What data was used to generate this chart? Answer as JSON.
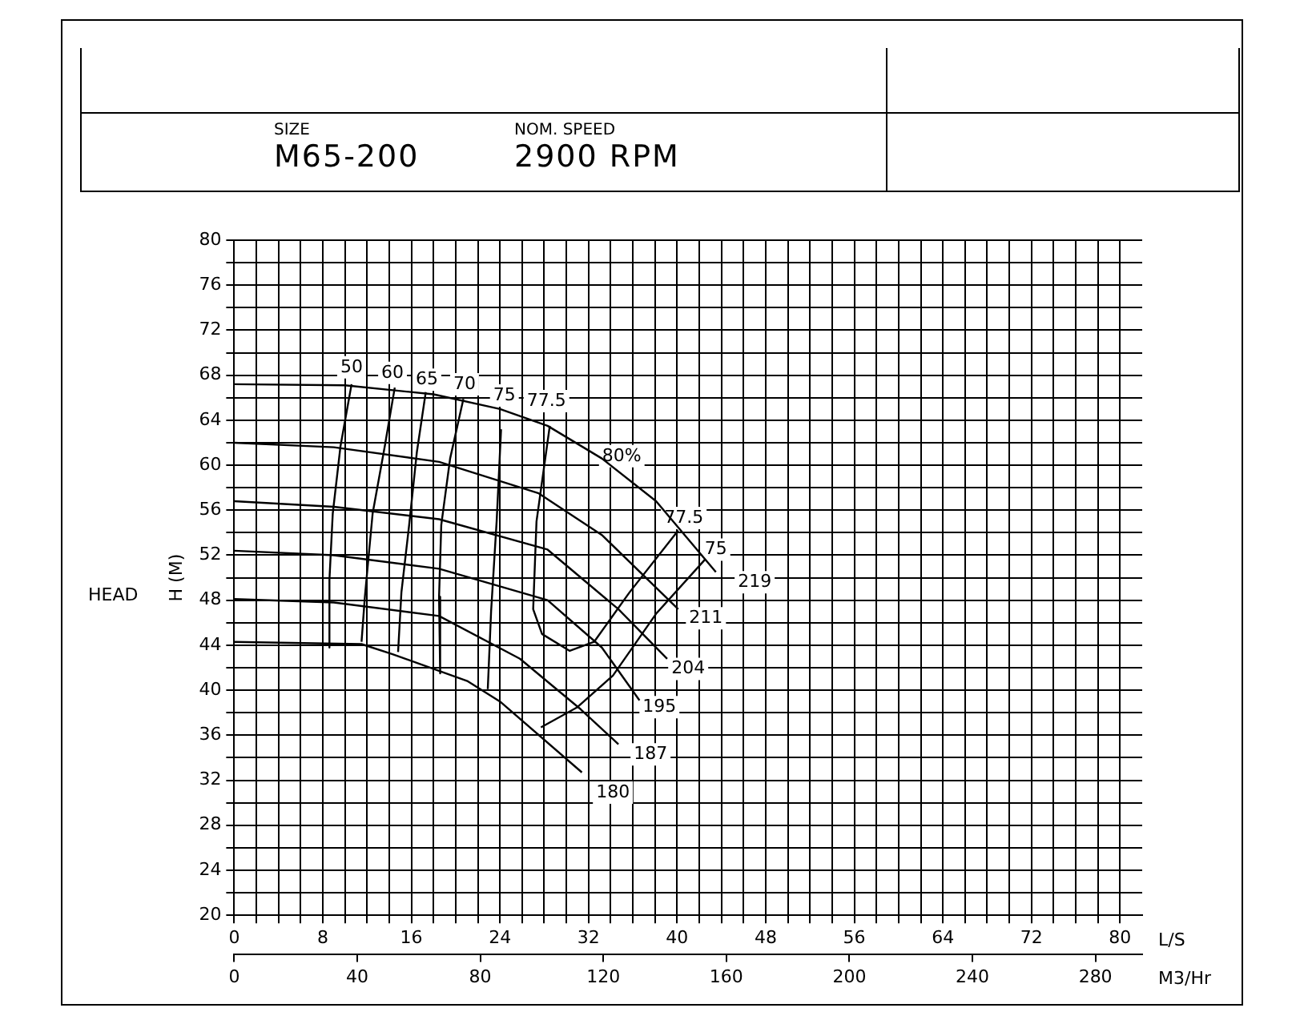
{
  "chart_data": {
    "type": "line",
    "ylabel": "H (M)",
    "xlabel": "L/S",
    "x2label": "M3/Hr",
    "annotations": [
      "SIZE",
      "M65-200",
      "NOM. SPEED",
      "2900 RPM",
      "HEAD",
      {
        "text": "50",
        "x": 10.6,
        "y": 68.7
      },
      {
        "text": "60",
        "x": 14.3,
        "y": 68.2
      },
      {
        "text": "65",
        "x": 17.4,
        "y": 67.6
      },
      {
        "text": "70",
        "x": 20.8,
        "y": 67.2
      },
      {
        "text": "75",
        "x": 24.4,
        "y": 66.2
      },
      {
        "text": "77.5",
        "x": 28.2,
        "y": 65.7
      },
      {
        "text": "80%",
        "x": 35,
        "y": 60.8
      },
      {
        "text": "77.5",
        "x": 40.6,
        "y": 55.3
      },
      {
        "text": "75",
        "x": 43.5,
        "y": 52.5
      },
      {
        "text": "219",
        "x": 47,
        "y": 49.6
      },
      {
        "text": "211",
        "x": 42.6,
        "y": 46.4
      },
      {
        "text": "204",
        "x": 41,
        "y": 41.9
      },
      {
        "text": "195",
        "x": 38.4,
        "y": 38.5
      },
      {
        "text": "187",
        "x": 37.6,
        "y": 34.3
      },
      {
        "text": "180",
        "x": 34.2,
        "y": 30.9
      }
    ],
    "series": [
      {
        "color": "#000000",
        "x": [
          0,
          10,
          18,
          24,
          28.3,
          33.2,
          38.1,
          43.5
        ],
        "values": [
          67.2,
          67.1,
          66.3,
          65,
          63.5,
          60.6,
          56.8,
          50.5
        ]
      },
      {
        "color": "#000000",
        "x": [
          0,
          9,
          18.5,
          27.5,
          33.2,
          40.1
        ],
        "values": [
          62,
          61.6,
          60.3,
          57.5,
          53.8,
          47.2
        ]
      },
      {
        "color": "#000000",
        "x": [
          0,
          9,
          18.5,
          28.3,
          34.7,
          39.1
        ],
        "values": [
          56.8,
          56.3,
          55.2,
          52.5,
          47.2,
          42.8
        ]
      },
      {
        "color": "#000000",
        "x": [
          0,
          9,
          18.5,
          28.3,
          33.2,
          36.6
        ],
        "values": [
          52.4,
          52,
          50.8,
          48,
          43.8,
          39.1
        ]
      },
      {
        "color": "#000000",
        "x": [
          0,
          9,
          18.5,
          25.8,
          31.3,
          34.7
        ],
        "values": [
          48.1,
          47.8,
          46.6,
          42.8,
          38.3,
          35.2
        ]
      },
      {
        "color": "#000000",
        "x": [
          0,
          11.5,
          14.3,
          21.1,
          24,
          31.4
        ],
        "values": [
          44.3,
          44.1,
          43.2,
          40.8,
          39,
          32.7
        ]
      },
      {
        "color": "#000000",
        "x": [
          10.6,
          9.6,
          8.9,
          8.6,
          8.6
        ],
        "values": [
          67.2,
          61.7,
          55.7,
          49.8,
          43.8
        ]
      },
      {
        "color": "#000000",
        "x": [
          14.5,
          13.6,
          12.5,
          11.8,
          11.5
        ],
        "values": [
          66.9,
          61.7,
          55.7,
          48.3,
          44.3
        ]
      },
      {
        "color": "#000000",
        "x": [
          17.3,
          16.5,
          15.8,
          15.1,
          14.8
        ],
        "values": [
          66.5,
          61.2,
          54.7,
          48.7,
          43.4
        ]
      },
      {
        "color": "#000000",
        "x": [
          20.7,
          19.5,
          18.7,
          18.5,
          18.6
        ],
        "values": [
          65.9,
          60.6,
          54.7,
          48.3,
          41.5
        ]
      },
      {
        "color": "#000000",
        "x": [
          24.1,
          23.7,
          23.2,
          22.9,
          null,
          27.7,
          31,
          34.2,
          38.1,
          42.5
        ],
        "values": [
          63.2,
          55,
          47,
          40.1,
          null,
          36.7,
          38.5,
          41.3,
          46.8,
          51.6
        ]
      },
      {
        "color": "#000000",
        "x": [
          28.5,
          27.3,
          27,
          27.8,
          30.3,
          32.5,
          35.7,
          40.1
        ],
        "values": [
          63.5,
          55,
          47.2,
          45,
          43.5,
          44.3,
          48.7,
          54.2
        ]
      }
    ],
    "xlim": [
      0,
      82
    ],
    "xticks": [
      0,
      {
        "value": 2,
        "label": null
      },
      {
        "value": 4,
        "label": null
      },
      {
        "value": 6,
        "label": null
      },
      8,
      {
        "value": 10,
        "label": null
      },
      {
        "value": 12,
        "label": null
      },
      {
        "value": 14,
        "label": null
      },
      16,
      {
        "value": 18,
        "label": null
      },
      {
        "value": 20,
        "label": null
      },
      {
        "value": 22,
        "label": null
      },
      24,
      {
        "value": 26,
        "label": null
      },
      {
        "value": 28,
        "label": null
      },
      {
        "value": 30,
        "label": null
      },
      32,
      {
        "value": 34,
        "label": null
      },
      {
        "value": 36,
        "label": null
      },
      {
        "value": 38,
        "label": null
      },
      40,
      {
        "value": 42,
        "label": null
      },
      {
        "value": 44,
        "label": null
      },
      {
        "value": 46,
        "label": null
      },
      48,
      {
        "value": 50,
        "label": null
      },
      {
        "value": 52,
        "label": null
      },
      {
        "value": 54,
        "label": null
      },
      56,
      {
        "value": 58,
        "label": null
      },
      {
        "value": 60,
        "label": null
      },
      {
        "value": 62,
        "label": null
      },
      64,
      {
        "value": 66,
        "label": null
      },
      {
        "value": 68,
        "label": null
      },
      {
        "value": 70,
        "label": null
      },
      72,
      {
        "value": 74,
        "label": null
      },
      {
        "value": 76,
        "label": null
      },
      {
        "value": 78,
        "label": null
      },
      80
    ],
    "x2lim": [
      0,
      295.2
    ],
    "x2ticks": [
      0,
      40,
      80,
      120,
      160,
      200,
      240,
      280
    ],
    "ylim": [
      20,
      80
    ],
    "yticks": [
      20,
      {
        "value": 22,
        "label": null
      },
      24,
      {
        "value": 26,
        "label": null
      },
      28,
      {
        "value": 30,
        "label": null
      },
      32,
      {
        "value": 34,
        "label": null
      },
      36,
      {
        "value": 38,
        "label": null
      },
      40,
      {
        "value": 42,
        "label": null
      },
      44,
      {
        "value": 46,
        "label": null
      },
      48,
      {
        "value": 50,
        "label": null
      },
      52,
      {
        "value": 54,
        "label": null
      },
      56,
      {
        "value": 58,
        "label": null
      },
      60,
      {
        "value": 62,
        "label": null
      },
      64,
      {
        "value": 66,
        "label": null
      },
      68,
      {
        "value": 70,
        "label": null
      },
      72,
      {
        "value": 74,
        "label": null
      },
      76,
      {
        "value": 78,
        "label": null
      },
      80
    ],
    "grid": true,
    "legend": false,
    "line_style": "solid"
  }
}
